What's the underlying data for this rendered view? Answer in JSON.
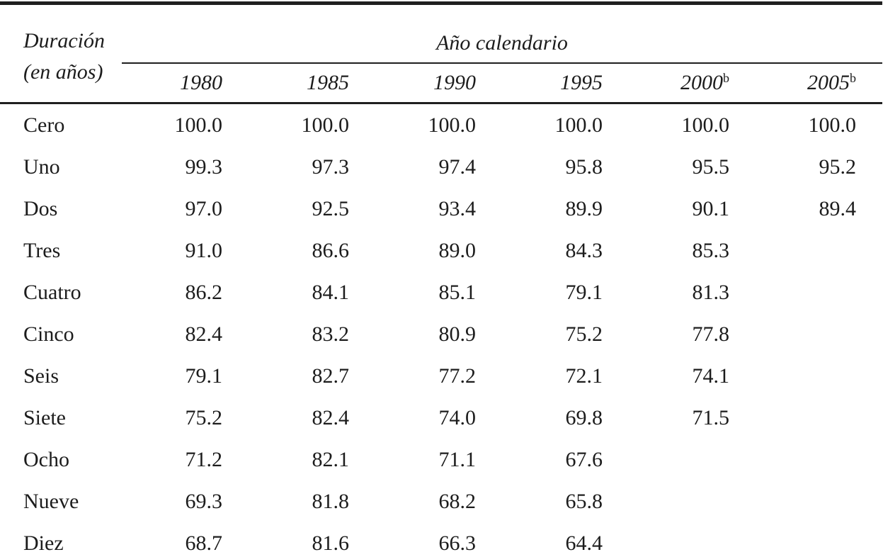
{
  "table": {
    "row_header": {
      "line1": "Duración",
      "line2": "(en años)"
    },
    "group_header": "Año calendario",
    "years": [
      {
        "label": "1980",
        "sup": ""
      },
      {
        "label": "1985",
        "sup": ""
      },
      {
        "label": "1990",
        "sup": ""
      },
      {
        "label": "1995",
        "sup": ""
      },
      {
        "label": "2000",
        "sup": "b"
      },
      {
        "label": "2005",
        "sup": "b"
      }
    ],
    "rows": [
      {
        "label": "Cero",
        "values": [
          "100.0",
          "100.0",
          "100.0",
          "100.0",
          "100.0",
          "100.0"
        ]
      },
      {
        "label": "Uno",
        "values": [
          "99.3",
          "97.3",
          "97.4",
          "95.8",
          "95.5",
          "95.2"
        ]
      },
      {
        "label": "Dos",
        "values": [
          "97.0",
          "92.5",
          "93.4",
          "89.9",
          "90.1",
          "89.4"
        ]
      },
      {
        "label": "Tres",
        "values": [
          "91.0",
          "86.6",
          "89.0",
          "84.3",
          "85.3",
          ""
        ]
      },
      {
        "label": "Cuatro",
        "values": [
          "86.2",
          "84.1",
          "85.1",
          "79.1",
          "81.3",
          ""
        ]
      },
      {
        "label": "Cinco",
        "values": [
          "82.4",
          "83.2",
          "80.9",
          "75.2",
          "77.8",
          ""
        ]
      },
      {
        "label": "Seis",
        "values": [
          "79.1",
          "82.7",
          "77.2",
          "72.1",
          "74.1",
          ""
        ]
      },
      {
        "label": "Siete",
        "values": [
          "75.2",
          "82.4",
          "74.0",
          "69.8",
          "71.5",
          ""
        ]
      },
      {
        "label": "Ocho",
        "values": [
          "71.2",
          "82.1",
          "71.1",
          "67.6",
          "",
          ""
        ]
      },
      {
        "label": "Nueve",
        "values": [
          "69.3",
          "81.8",
          "68.2",
          "65.8",
          "",
          ""
        ]
      },
      {
        "label": "Diez",
        "values": [
          "68.7",
          "81.6",
          "66.3",
          "64.4",
          "",
          ""
        ]
      }
    ]
  },
  "colors": {
    "text": "#1c1c1c",
    "rule_heavy": "#1f1f1f",
    "rule_light": "#b0b0b0"
  }
}
